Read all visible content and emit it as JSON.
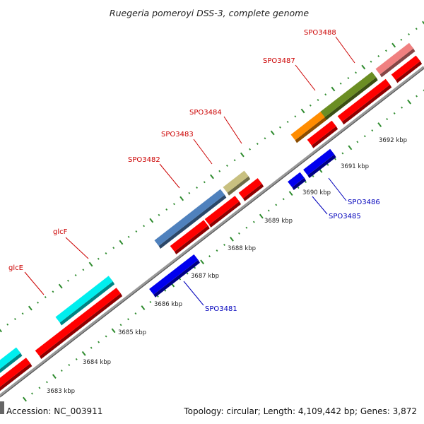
{
  "title": "Ruegeria pomeroyi DSS-3, complete genome",
  "footer": {
    "accession": "Accession: NC_003911",
    "summary": "Topology: circular; Length: 4,109,442 bp; Genes: 3,872"
  },
  "colors": {
    "label_forward": "#cc0000",
    "label_reverse": "#0000bb",
    "cds_forward": "#ff0000",
    "cds_reverse": "#0000ee",
    "backbone": "#888888",
    "tick_dots": "#2e8b2e"
  },
  "ticks": [
    "3683 kbp",
    "3684 kbp",
    "3685 kbp",
    "3686 kbp",
    "3687 kbp",
    "3688 kbp",
    "3689 kbp",
    "3690 kbp",
    "3691 kbp",
    "3692 kbp"
  ],
  "genes_forward": [
    {
      "label": "glcE"
    },
    {
      "label": "glcF"
    },
    {
      "label": "SPO3482"
    },
    {
      "label": "SPO3483"
    },
    {
      "label": "SPO3484"
    },
    {
      "label": "SPO3487"
    },
    {
      "label": "SPO3488"
    }
  ],
  "genes_reverse": [
    {
      "label": "SPO3481"
    },
    {
      "label": "SPO3485"
    },
    {
      "label": "SPO3486"
    }
  ],
  "feature_colors": {
    "cyan": "#00eeee",
    "steelblue": "#4f81bd",
    "khaki": "#c8c080",
    "orange": "#ff8c00",
    "olive": "#6b8e23",
    "pink": "#f08080"
  }
}
